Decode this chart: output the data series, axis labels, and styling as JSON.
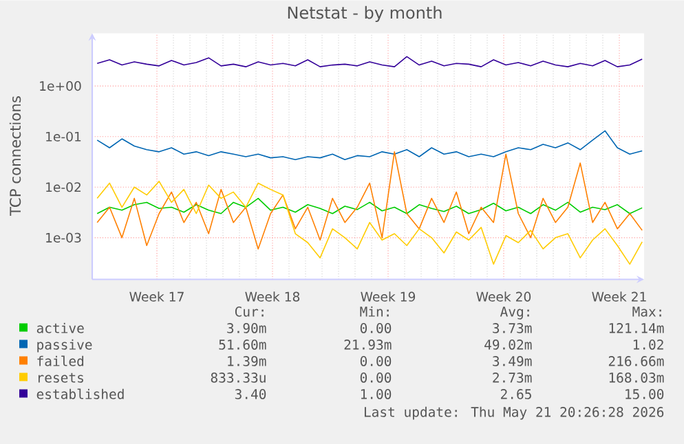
{
  "chart_data": {
    "type": "line",
    "title": "Netstat - by month",
    "ylabel": "TCP connections",
    "log": "y",
    "grid": true,
    "legend": "bottom",
    "marker": "none",
    "line_style": "solid",
    "xlim": [
      "2026-04-18T10:00",
      "2026-05-21T20:00"
    ],
    "ylim": [
      0.00015,
      11
    ],
    "xticks": [
      {
        "value": "2026-04-22T08:00",
        "label": "Week 17"
      },
      {
        "value": "2026-04-29T08:00",
        "label": "Week 18"
      },
      {
        "value": "2026-05-06T08:00",
        "label": "Week 19"
      },
      {
        "value": "2026-05-13T08:00",
        "label": "Week 20"
      },
      {
        "value": "2026-05-20T08:00",
        "label": "Week 21"
      }
    ],
    "yticks": [
      {
        "value": 0.001,
        "label": "1e-03"
      },
      {
        "value": 0.01,
        "label": "1e-02"
      },
      {
        "value": 0.1,
        "label": "1e-01"
      },
      {
        "value": 1,
        "label": "1e+00"
      }
    ],
    "x": [
      "2026-04-18T17:12",
      "2026-04-19T11:12",
      "2026-04-20T05:12",
      "2026-04-20T23:12",
      "2026-04-21T17:12",
      "2026-04-22T11:12",
      "2026-04-23T05:12",
      "2026-04-23T23:12",
      "2026-04-24T17:12",
      "2026-04-25T11:12",
      "2026-04-26T05:12",
      "2026-04-26T23:12",
      "2026-04-27T17:12",
      "2026-04-28T11:12",
      "2026-04-29T05:12",
      "2026-04-29T23:12",
      "2026-04-30T17:12",
      "2026-05-01T11:12",
      "2026-05-02T05:12",
      "2026-05-02T23:12",
      "2026-05-03T17:12",
      "2026-05-04T11:12",
      "2026-05-05T05:12",
      "2026-05-05T23:12",
      "2026-05-06T17:12",
      "2026-05-07T11:12",
      "2026-05-08T05:12",
      "2026-05-08T23:12",
      "2026-05-09T17:12",
      "2026-05-10T11:12",
      "2026-05-11T05:12",
      "2026-05-11T23:12",
      "2026-05-12T17:12",
      "2026-05-13T11:12",
      "2026-05-14T05:12",
      "2026-05-14T23:12",
      "2026-05-15T17:12",
      "2026-05-16T11:12",
      "2026-05-17T05:12",
      "2026-05-17T23:12",
      "2026-05-18T17:12",
      "2026-05-19T11:12",
      "2026-05-20T05:12",
      "2026-05-20T23:12",
      "2026-05-21T17:12"
    ],
    "series": [
      {
        "name": "active",
        "color": "#00cc00",
        "values": [
          0.003,
          0.004,
          0.0035,
          0.0045,
          0.005,
          0.0038,
          0.004,
          0.0032,
          0.0045,
          0.0035,
          0.003,
          0.005,
          0.004,
          0.006,
          0.0035,
          0.004,
          0.0032,
          0.0045,
          0.0038,
          0.003,
          0.0042,
          0.0036,
          0.005,
          0.0034,
          0.004,
          0.003,
          0.0045,
          0.0038,
          0.0033,
          0.0042,
          0.003,
          0.0036,
          0.0048,
          0.0034,
          0.004,
          0.003,
          0.0045,
          0.0035,
          0.005,
          0.0032,
          0.004,
          0.0036,
          0.0045,
          0.003,
          0.0039
        ]
      },
      {
        "name": "passive",
        "color": "#0066b3",
        "values": [
          0.085,
          0.06,
          0.09,
          0.065,
          0.055,
          0.05,
          0.06,
          0.045,
          0.05,
          0.042,
          0.05,
          0.045,
          0.04,
          0.045,
          0.038,
          0.04,
          0.035,
          0.04,
          0.038,
          0.045,
          0.035,
          0.042,
          0.04,
          0.05,
          0.045,
          0.055,
          0.04,
          0.06,
          0.045,
          0.05,
          0.04,
          0.045,
          0.04,
          0.05,
          0.06,
          0.055,
          0.07,
          0.06,
          0.075,
          0.055,
          0.085,
          0.13,
          0.06,
          0.045,
          0.052
        ]
      },
      {
        "name": "failed",
        "color": "#ff8000",
        "values": [
          0.002,
          0.004,
          0.001,
          0.006,
          0.0007,
          0.003,
          0.008,
          0.002,
          0.005,
          0.0012,
          0.009,
          0.002,
          0.004,
          0.0006,
          0.003,
          0.007,
          0.0015,
          0.004,
          0.0009,
          0.006,
          0.002,
          0.004,
          0.012,
          0.001,
          0.05,
          0.003,
          0.0015,
          0.006,
          0.002,
          0.008,
          0.0012,
          0.004,
          0.002,
          0.045,
          0.003,
          0.001,
          0.006,
          0.002,
          0.004,
          0.03,
          0.002,
          0.005,
          0.0015,
          0.003,
          0.0014
        ]
      },
      {
        "name": "resets",
        "color": "#ffcc00",
        "values": [
          0.006,
          0.012,
          0.004,
          0.01,
          0.007,
          0.013,
          0.005,
          0.009,
          0.003,
          0.011,
          0.006,
          0.008,
          0.004,
          0.012,
          0.009,
          0.007,
          0.0012,
          0.0008,
          0.0004,
          0.0015,
          0.001,
          0.0006,
          0.002,
          0.0009,
          0.0012,
          0.0007,
          0.0015,
          0.001,
          0.0005,
          0.0013,
          0.0009,
          0.0016,
          0.0003,
          0.0011,
          0.0008,
          0.0014,
          0.0006,
          0.001,
          0.0012,
          0.0004,
          0.0009,
          0.0015,
          0.0007,
          0.0003,
          0.00083
        ]
      },
      {
        "name": "established",
        "color": "#330099",
        "values": [
          2.8,
          3.3,
          2.6,
          3.0,
          2.7,
          2.5,
          3.2,
          2.6,
          2.9,
          3.6,
          2.5,
          2.7,
          2.4,
          3.0,
          2.6,
          2.8,
          2.5,
          3.3,
          2.4,
          2.6,
          2.7,
          2.5,
          3.0,
          2.6,
          2.4,
          3.8,
          2.6,
          3.1,
          2.5,
          2.8,
          2.7,
          2.4,
          3.3,
          2.6,
          2.9,
          2.5,
          3.1,
          2.6,
          2.4,
          2.8,
          2.5,
          3.2,
          2.4,
          2.6,
          3.4
        ]
      }
    ],
    "annotations": [
      "Cur:",
      "Min:",
      "Avg:",
      "Max:",
      "3.90m",
      "0.00",
      "3.73m",
      "121.14m",
      "51.60m",
      "21.93m",
      "49.02m",
      "1.02",
      "1.39m",
      "0.00",
      "3.49m",
      "216.66m",
      "833.33u",
      "0.00",
      "2.73m",
      "168.03m",
      "3.40",
      "1.00",
      "2.65",
      "15.00",
      "Last update: Thu May 21 20:26:28 2026"
    ]
  }
}
